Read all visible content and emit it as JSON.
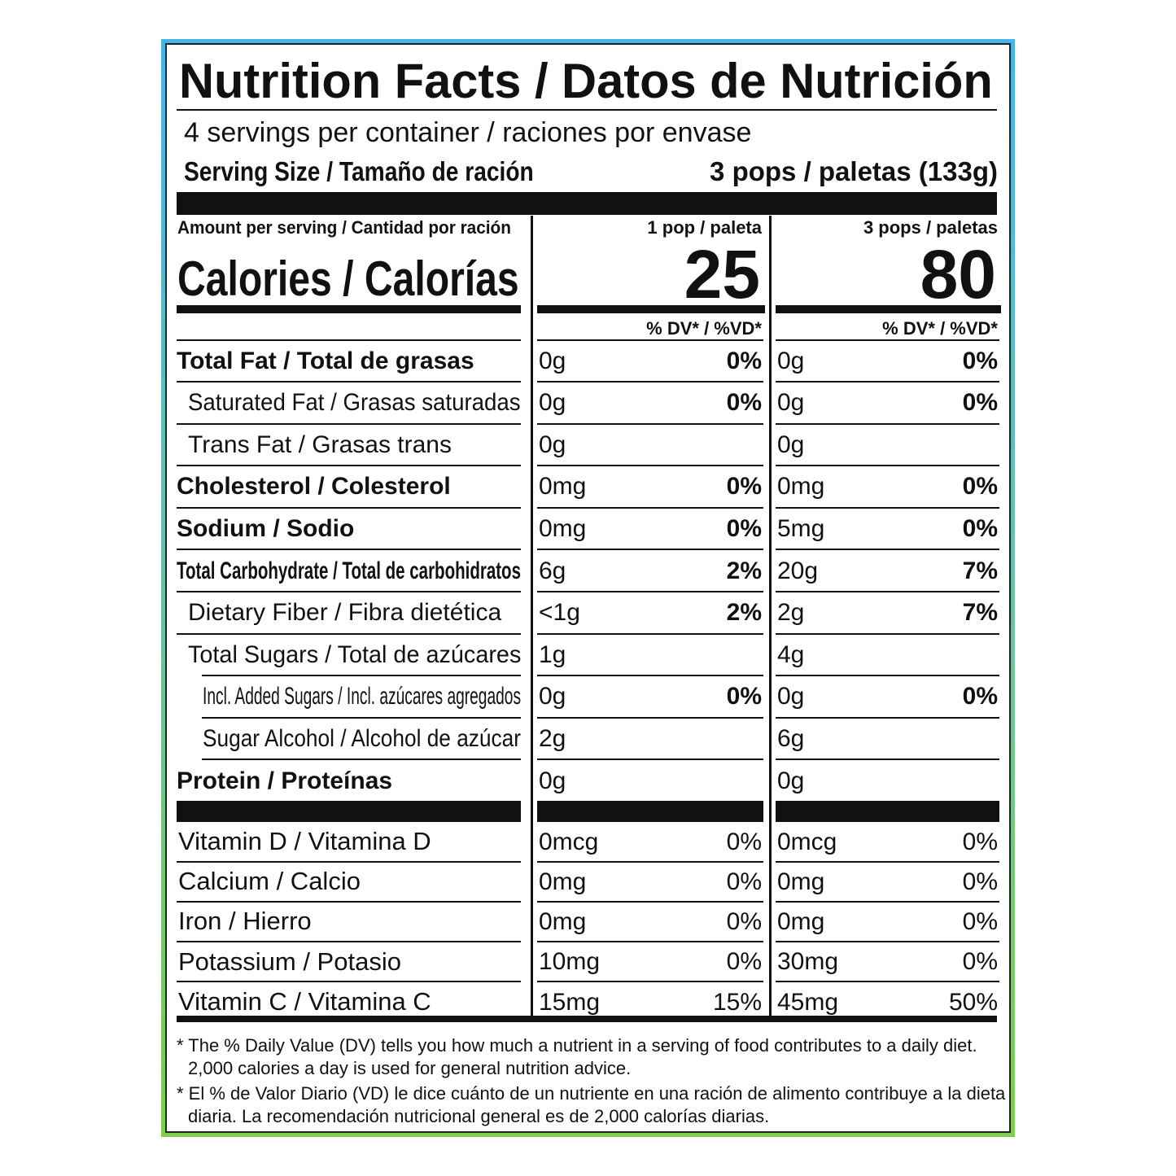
{
  "title": "Nutrition Facts / Datos de Nutrición",
  "servings": "4 servings per container / raciones por envase",
  "serving_size": {
    "label": "Serving Size / Tamaño de ración",
    "value": "3 pops / paletas (133g)"
  },
  "amount_label": "Amount per serving / Cantidad por ración",
  "calories_label": "Calories / Calorías",
  "columns": [
    {
      "header": "1 pop / paleta",
      "calories": 25,
      "dv_header": "% DV* / %VD*"
    },
    {
      "header": "3 pops / paletas",
      "calories": 80,
      "dv_header": "% DV* / %VD*"
    }
  ],
  "nutrients": [
    {
      "name": "Total Fat / Total de grasas",
      "indent": 0,
      "values": [
        [
          "0g",
          "0%"
        ],
        [
          "0g",
          "0%"
        ]
      ]
    },
    {
      "name": "Saturated Fat / Grasas saturadas",
      "indent": 1,
      "values": [
        [
          "0g",
          "0%"
        ],
        [
          "0g",
          "0%"
        ]
      ]
    },
    {
      "name": "Trans Fat / Grasas trans",
      "indent": 1,
      "values": [
        [
          "0g",
          null
        ],
        [
          "0g",
          null
        ]
      ]
    },
    {
      "name": "Cholesterol / Colesterol",
      "indent": 0,
      "values": [
        [
          "0mg",
          "0%"
        ],
        [
          "0mg",
          "0%"
        ]
      ]
    },
    {
      "name": "Sodium / Sodio",
      "indent": 0,
      "values": [
        [
          "0mg",
          "0%"
        ],
        [
          "5mg",
          "0%"
        ]
      ]
    },
    {
      "name": "Total Carbohydrate / Total de carbohidratos",
      "indent": 0,
      "values": [
        [
          "6g",
          "2%"
        ],
        [
          "20g",
          "7%"
        ]
      ]
    },
    {
      "name": "Dietary Fiber / Fibra dietética",
      "indent": 1,
      "values": [
        [
          "<1g",
          "2%"
        ],
        [
          "2g",
          "7%"
        ]
      ]
    },
    {
      "name": "Total Sugars / Total de azúcares",
      "indent": 1,
      "values": [
        [
          "1g",
          null
        ],
        [
          "4g",
          null
        ]
      ]
    },
    {
      "name": "Incl. Added Sugars / Incl. azúcares agregados",
      "indent": 2,
      "values": [
        [
          "0g",
          "0%"
        ],
        [
          "0g",
          "0%"
        ]
      ]
    },
    {
      "name": "Sugar Alcohol / Alcohol de azúcar",
      "indent": 2,
      "values": [
        [
          "2g",
          null
        ],
        [
          "6g",
          null
        ]
      ]
    },
    {
      "name": "Protein / Proteínas",
      "indent": 0,
      "values": [
        [
          "0g",
          null
        ],
        [
          "0g",
          null
        ]
      ]
    }
  ],
  "vitamins": [
    {
      "name": "Vitamin D / Vitamina D",
      "values": [
        [
          "0mcg",
          "0%"
        ],
        [
          "0mcg",
          "0%"
        ]
      ]
    },
    {
      "name": "Calcium / Calcio",
      "values": [
        [
          "0mg",
          "0%"
        ],
        [
          "0mg",
          "0%"
        ]
      ]
    },
    {
      "name": "Iron / Hierro",
      "values": [
        [
          "0mg",
          "0%"
        ],
        [
          "0mg",
          "0%"
        ]
      ]
    },
    {
      "name": "Potassium / Potasio",
      "values": [
        [
          "10mg",
          "0%"
        ],
        [
          "30mg",
          "0%"
        ]
      ]
    },
    {
      "name": "Vitamin C / Vitamina C",
      "values": [
        [
          "15mg",
          "15%"
        ],
        [
          "45mg",
          "50%"
        ]
      ]
    }
  ],
  "footnotes": [
    "* The % Daily Value (DV) tells you how much a nutrient in a serving of food contributes to a daily diet. 2,000 calories a day is used for general nutrition advice.",
    "* El % de Valor Diario (VD) le dice cuánto de un nutriente en una ración de alimento contribuye a la dieta diaria. La recomendación nutricional general es de 2,000 calorías diarias."
  ]
}
